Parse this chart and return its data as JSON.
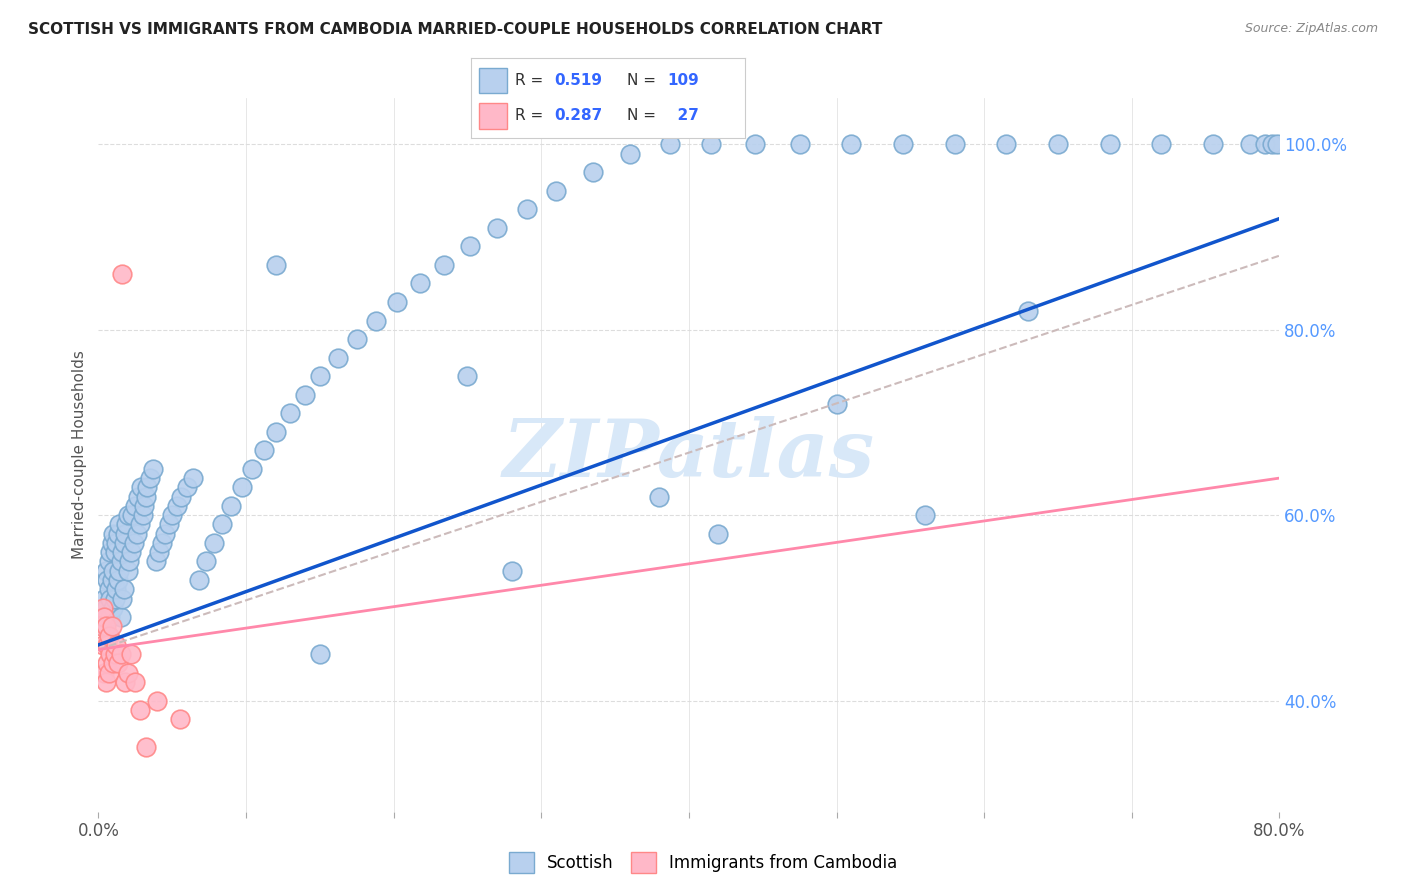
{
  "title": "SCOTTISH VS IMMIGRANTS FROM CAMBODIA MARRIED-COUPLE HOUSEHOLDS CORRELATION CHART",
  "source": "Source: ZipAtlas.com",
  "ylabel": "Married-couple Households",
  "xlim": [
    0.0,
    0.8
  ],
  "ylim": [
    0.28,
    1.05
  ],
  "x_tick_positions": [
    0.0,
    0.1,
    0.2,
    0.3,
    0.4,
    0.5,
    0.6,
    0.7,
    0.8
  ],
  "x_tick_labels": [
    "0.0%",
    "",
    "",
    "",
    "",
    "",
    "",
    "",
    "80.0%"
  ],
  "y_tick_vals_right": [
    0.4,
    0.6,
    0.8,
    1.0
  ],
  "y_tick_labels_right": [
    "40.0%",
    "60.0%",
    "80.0%",
    "100.0%"
  ],
  "blue_R": 0.519,
  "blue_N": 109,
  "pink_R": 0.287,
  "pink_N": 27,
  "blue_face_color": "#B8D0EE",
  "blue_edge_color": "#7AAAD0",
  "pink_face_color": "#FFB8C8",
  "pink_edge_color": "#FF8888",
  "blue_line_color": "#1155CC",
  "pink_line_color": "#FF88AA",
  "gray_dash_color": "#CCBBBB",
  "watermark": "ZIPatlas",
  "watermark_color": "#D8E8F8",
  "title_color": "#222222",
  "source_color": "#888888",
  "ylabel_color": "#555555",
  "tick_color_x": "#555555",
  "tick_color_y": "#5599FF",
  "grid_color": "#DDDDDD",
  "bg_color": "#FFFFFF",
  "blue_scatter_x": [
    0.003,
    0.004,
    0.005,
    0.005,
    0.006,
    0.006,
    0.007,
    0.007,
    0.007,
    0.008,
    0.008,
    0.008,
    0.009,
    0.009,
    0.01,
    0.01,
    0.01,
    0.011,
    0.011,
    0.012,
    0.012,
    0.013,
    0.013,
    0.014,
    0.014,
    0.015,
    0.015,
    0.016,
    0.016,
    0.017,
    0.017,
    0.018,
    0.019,
    0.02,
    0.02,
    0.021,
    0.022,
    0.023,
    0.024,
    0.025,
    0.026,
    0.027,
    0.028,
    0.029,
    0.03,
    0.031,
    0.032,
    0.033,
    0.035,
    0.037,
    0.039,
    0.041,
    0.043,
    0.045,
    0.048,
    0.05,
    0.053,
    0.056,
    0.06,
    0.064,
    0.068,
    0.073,
    0.078,
    0.084,
    0.09,
    0.097,
    0.104,
    0.112,
    0.12,
    0.13,
    0.14,
    0.15,
    0.162,
    0.175,
    0.188,
    0.202,
    0.218,
    0.234,
    0.252,
    0.27,
    0.29,
    0.31,
    0.335,
    0.36,
    0.387,
    0.415,
    0.445,
    0.475,
    0.51,
    0.545,
    0.58,
    0.615,
    0.65,
    0.685,
    0.72,
    0.755,
    0.78,
    0.79,
    0.795,
    0.798,
    0.12,
    0.25,
    0.38,
    0.5,
    0.63,
    0.15,
    0.28,
    0.42,
    0.56
  ],
  "blue_scatter_y": [
    0.48,
    0.51,
    0.5,
    0.54,
    0.49,
    0.53,
    0.52,
    0.55,
    0.47,
    0.51,
    0.56,
    0.49,
    0.53,
    0.57,
    0.5,
    0.54,
    0.58,
    0.51,
    0.56,
    0.52,
    0.57,
    0.53,
    0.58,
    0.54,
    0.59,
    0.55,
    0.49,
    0.56,
    0.51,
    0.57,
    0.52,
    0.58,
    0.59,
    0.54,
    0.6,
    0.55,
    0.56,
    0.6,
    0.57,
    0.61,
    0.58,
    0.62,
    0.59,
    0.63,
    0.6,
    0.61,
    0.62,
    0.63,
    0.64,
    0.65,
    0.55,
    0.56,
    0.57,
    0.58,
    0.59,
    0.6,
    0.61,
    0.62,
    0.63,
    0.64,
    0.53,
    0.55,
    0.57,
    0.59,
    0.61,
    0.63,
    0.65,
    0.67,
    0.69,
    0.71,
    0.73,
    0.75,
    0.77,
    0.79,
    0.81,
    0.83,
    0.85,
    0.87,
    0.89,
    0.91,
    0.93,
    0.95,
    0.97,
    0.99,
    1.0,
    1.0,
    1.0,
    1.0,
    1.0,
    1.0,
    1.0,
    1.0,
    1.0,
    1.0,
    1.0,
    1.0,
    1.0,
    1.0,
    1.0,
    1.0,
    0.87,
    0.75,
    0.62,
    0.72,
    0.82,
    0.45,
    0.54,
    0.58,
    0.6
  ],
  "pink_scatter_x": [
    0.002,
    0.003,
    0.003,
    0.004,
    0.004,
    0.005,
    0.005,
    0.006,
    0.006,
    0.007,
    0.007,
    0.008,
    0.009,
    0.01,
    0.011,
    0.012,
    0.013,
    0.015,
    0.016,
    0.018,
    0.02,
    0.022,
    0.025,
    0.028,
    0.032,
    0.04,
    0.055
  ],
  "pink_scatter_y": [
    0.48,
    0.5,
    0.46,
    0.49,
    0.43,
    0.48,
    0.42,
    0.46,
    0.44,
    0.47,
    0.43,
    0.45,
    0.48,
    0.44,
    0.45,
    0.46,
    0.44,
    0.45,
    0.86,
    0.42,
    0.43,
    0.45,
    0.42,
    0.39,
    0.35,
    0.4,
    0.38
  ],
  "blue_line_x": [
    0.0,
    0.8
  ],
  "blue_line_y": [
    0.46,
    0.92
  ],
  "pink_line_x": [
    0.0,
    0.8
  ],
  "pink_line_y": [
    0.455,
    0.64
  ],
  "gray_dash_line_x": [
    0.0,
    0.8
  ],
  "gray_dash_line_y": [
    0.455,
    0.88
  ]
}
